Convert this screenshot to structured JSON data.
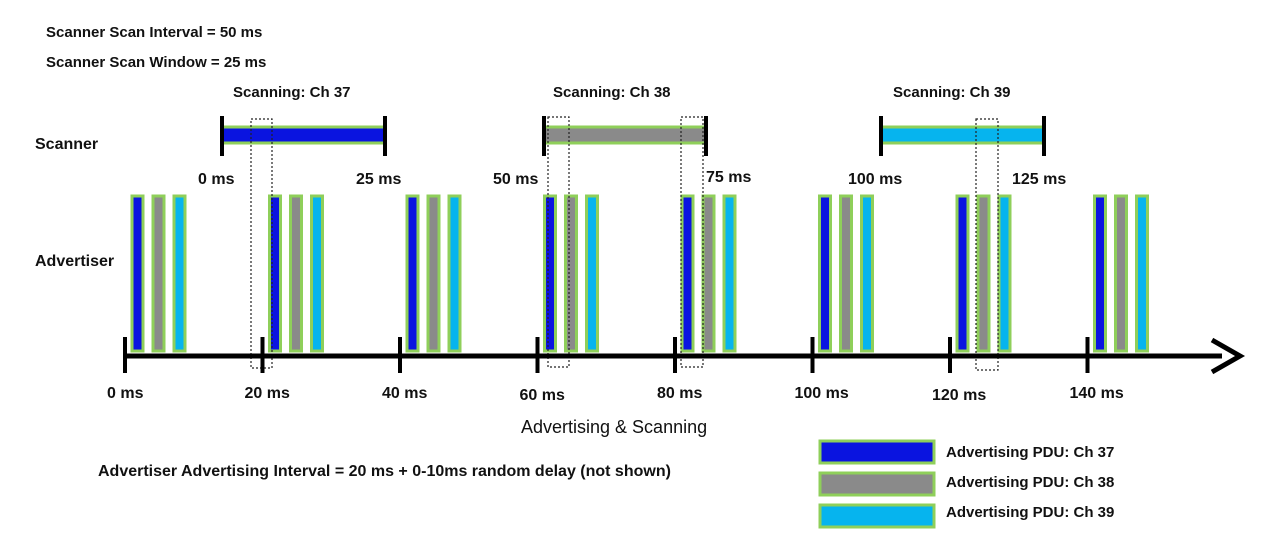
{
  "header": {
    "scan_interval": "Scanner Scan Interval = 50 ms",
    "scan_window": "Scanner Scan Window = 25 ms"
  },
  "rows": {
    "scanner": "Scanner",
    "advertiser": "Advertiser"
  },
  "scanner_windows": [
    {
      "label": "Scanning: Ch 37",
      "start_ms": 0,
      "end_ms": 25,
      "start_label": "0 ms",
      "end_label": "25 ms",
      "channel": 37
    },
    {
      "label": "Scanning: Ch 38",
      "start_ms": 50,
      "end_ms": 75,
      "start_label": "50 ms",
      "end_label": "75 ms",
      "channel": 38
    },
    {
      "label": "Scanning: Ch 39",
      "start_ms": 100,
      "end_ms": 125,
      "start_label": "100 ms",
      "end_label": "125 ms",
      "channel": 39
    }
  ],
  "advertising_events_ms": [
    0,
    20,
    40,
    60,
    80,
    100,
    120,
    140
  ],
  "timeline": {
    "title": "Advertising & Scanning",
    "ticks": [
      {
        "ms": 0,
        "label": "0 ms"
      },
      {
        "ms": 20,
        "label": "20 ms"
      },
      {
        "ms": 40,
        "label": "40 ms"
      },
      {
        "ms": 60,
        "label": "60 ms"
      },
      {
        "ms": 80,
        "label": "80 ms"
      },
      {
        "ms": 100,
        "label": "100 ms"
      },
      {
        "ms": 120,
        "label": "120 ms"
      },
      {
        "ms": 140,
        "label": "140 ms"
      }
    ]
  },
  "footer_note": "Advertiser Advertising Interval = 20 ms + 0-10ms random delay (not shown)",
  "legend": [
    {
      "label": "Advertising PDU: Ch 37",
      "color": "#0a14e0"
    },
    {
      "label": "Advertising PDU: Ch 38",
      "color": "#8a8a8a"
    },
    {
      "label": "Advertising PDU: Ch 39",
      "color": "#06b4ee"
    }
  ],
  "colors": {
    "ch37": "#0a14e0",
    "ch38": "#8a8a8a",
    "ch39": "#06b4ee",
    "border": "#8fcf5a",
    "axis": "#000000"
  }
}
